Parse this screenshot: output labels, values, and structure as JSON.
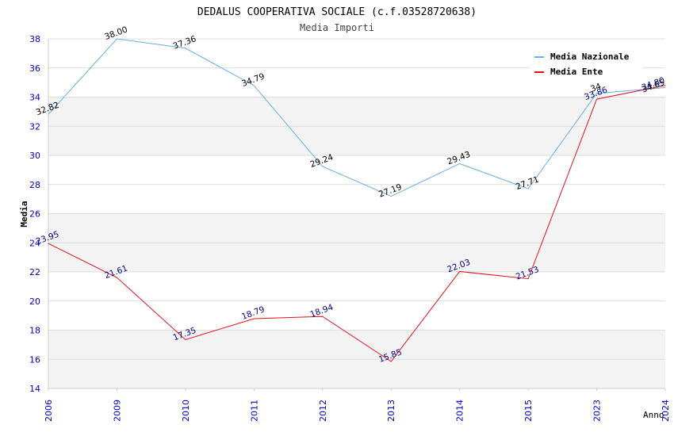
{
  "chart_data": {
    "type": "line",
    "title": "DEDALUS COOPERATIVA SOCIALE (c.f.03528720638)",
    "subtitle": "Media Importi",
    "xlabel": "Anno",
    "ylabel": "Media",
    "categories": [
      "2006",
      "2009",
      "2010",
      "2011",
      "2012",
      "2013",
      "2014",
      "2015",
      "2023",
      "2024"
    ],
    "ylim": [
      14,
      38
    ],
    "yticks": [
      14,
      16,
      18,
      20,
      22,
      24,
      26,
      28,
      30,
      32,
      34,
      36,
      38
    ],
    "grid": true,
    "legend_position": "top-right",
    "series": [
      {
        "name": "Media Nazionale",
        "color": "#6aaee8",
        "label_color": "#000000",
        "values": [
          32.82,
          38.0,
          37.36,
          34.79,
          29.24,
          27.19,
          29.43,
          27.71,
          34.26,
          34.65
        ],
        "labels": [
          "32.82",
          "38.00",
          "37.36",
          "34.79",
          "29.24",
          "27.19",
          "29.43",
          "27.71",
          "34",
          "34.65"
        ]
      },
      {
        "name": "Media Ente",
        "color": "#e8101a",
        "label_color": "#00008b",
        "values": [
          23.95,
          21.61,
          17.35,
          18.79,
          18.94,
          15.85,
          22.03,
          21.53,
          33.86,
          34.8
        ],
        "labels": [
          "23.95",
          "21.61",
          "17.35",
          "18.79",
          "18.94",
          "15.85",
          "22.03",
          "21.53",
          "33.86",
          "34.80"
        ]
      }
    ]
  }
}
